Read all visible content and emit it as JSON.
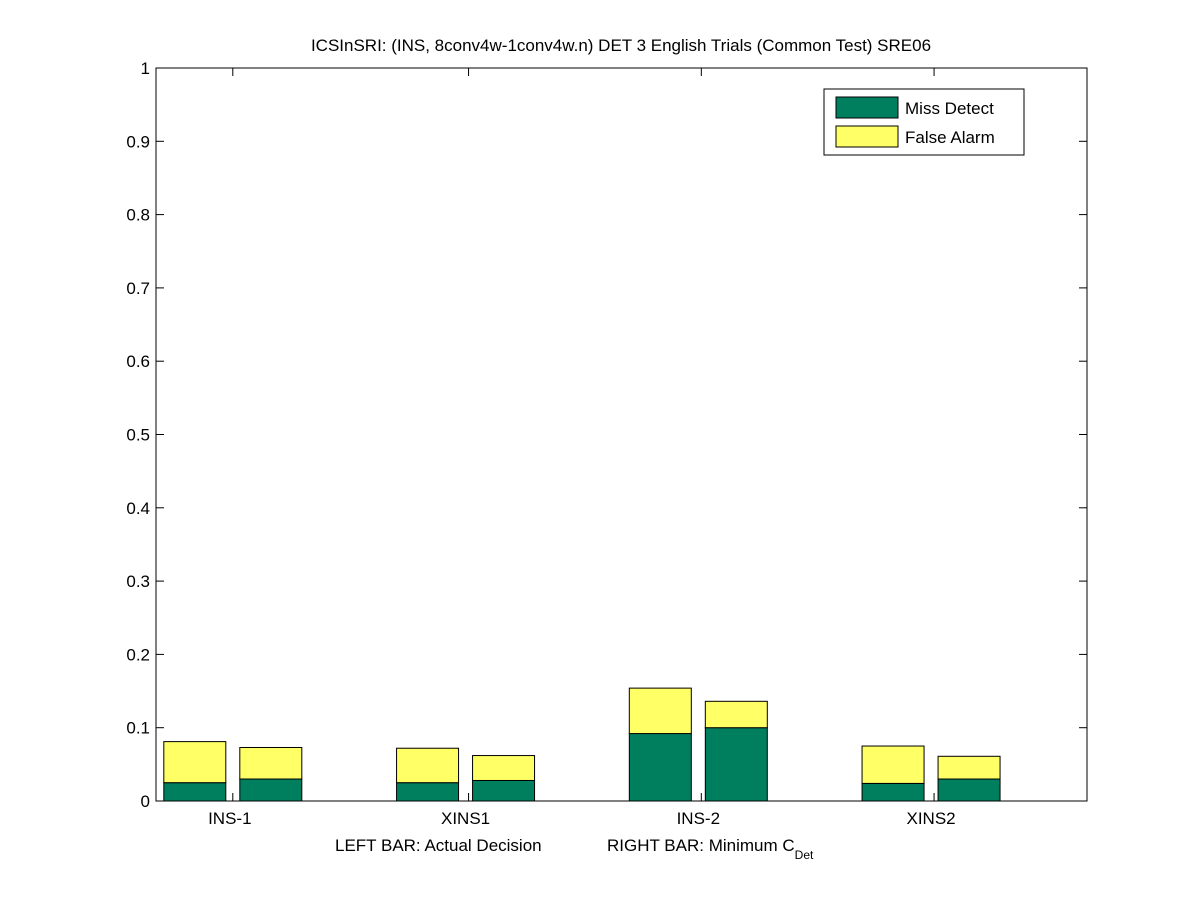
{
  "chart_data": {
    "type": "bar",
    "stacked": true,
    "title": "ICSInSRI: (INS, 8conv4w-1conv4w.n) DET 3 English Trials (Common Test) SRE06",
    "xlabel_left": "LEFT BAR: Actual Decision",
    "xlabel_right_main": "RIGHT BAR: Minimum C",
    "xlabel_right_sub": "Det",
    "categories": [
      "INS-1",
      "XINS1",
      "INS-2",
      "XINS2"
    ],
    "bars_per_category": [
      "Actual Decision",
      "Minimum C_Det"
    ],
    "series": [
      {
        "name": "Miss Detect",
        "color": "#007f5f",
        "values": [
          [
            0.025,
            0.03
          ],
          [
            0.025,
            0.028
          ],
          [
            0.092,
            0.1
          ],
          [
            0.024,
            0.03
          ]
        ]
      },
      {
        "name": "False Alarm",
        "color": "#ffff66",
        "values": [
          [
            0.056,
            0.043
          ],
          [
            0.047,
            0.034
          ],
          [
            0.062,
            0.036
          ],
          [
            0.051,
            0.031
          ]
        ]
      }
    ],
    "ylim": [
      0,
      1
    ],
    "yticks": [
      "0",
      "0.1",
      "0.2",
      "0.3",
      "0.4",
      "0.5",
      "0.6",
      "0.7",
      "0.8",
      "0.9",
      "1"
    ],
    "grid": false,
    "legend_position": "top-right"
  }
}
